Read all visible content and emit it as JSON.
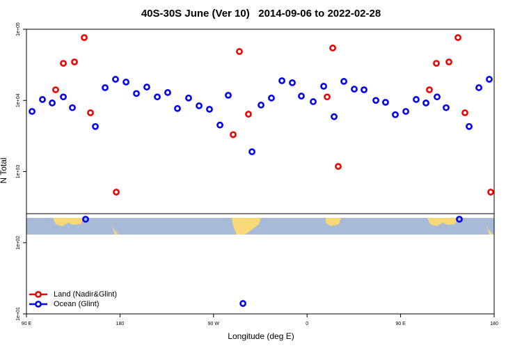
{
  "chart_data": {
    "type": "scatter",
    "title": "40S-30S June (Ver 10)   2014-09-06 to 2022-02-28",
    "xlabel": "Longitude (deg E)",
    "ylabel": "N Total",
    "xlim": [
      90,
      540
    ],
    "xticks": [
      {
        "value": 90,
        "label": "90 E"
      },
      {
        "value": 180,
        "label": "180"
      },
      {
        "value": 270,
        "label": "90 W"
      },
      {
        "value": 360,
        "label": "0"
      },
      {
        "value": 450,
        "label": "90 E"
      },
      {
        "value": 540,
        "label": "180"
      }
    ],
    "ylim": [
      10,
      100000
    ],
    "yticks": [
      {
        "value": 10,
        "label": "1e+01"
      },
      {
        "value": 100,
        "label": "1e+02"
      },
      {
        "value": 1000,
        "label": "1e+03"
      },
      {
        "value": 10000,
        "label": "1e+04"
      },
      {
        "value": 100000,
        "label": "1e+05"
      }
    ],
    "log_y": true,
    "legend": "bottom-left",
    "series": [
      {
        "name": "Land (Nadir&Glint)",
        "color": "#ee0000",
        "x": [
          118.1,
          125.5,
          136.2,
          145.6,
          151.6,
          176.4,
          288.9,
          294.9,
          303.6,
          379.3,
          384.7,
          390.0,
          477.7,
          484.4,
          496.5,
          505.2,
          511.9,
          536.7
        ],
        "values": [
          14100,
          33200,
          34700,
          76300,
          6700,
          514,
          3300,
          48600,
          6400,
          11200,
          54500,
          1180,
          14100,
          33200,
          34700,
          76300,
          6700,
          514
        ]
      },
      {
        "name": "Ocean (Glint)",
        "color": "#0000ee",
        "x": [
          95.4,
          105.4,
          114.8,
          125.5,
          134.2,
          146.9,
          156.3,
          165.7,
          175.7,
          185.8,
          195.8,
          205.8,
          215.9,
          225.9,
          235.3,
          246.0,
          256.1,
          266.1,
          276.2,
          284.2,
          298.3,
          307.0,
          315.7,
          325.7,
          335.8,
          345.8,
          354.5,
          365.9,
          376.0,
          386.0,
          395.4,
          405.4,
          414.8,
          426.2,
          435.5,
          444.9,
          455.0,
          465.0,
          474.4,
          485.1,
          493.8,
          506.5,
          515.9,
          525.3,
          535.3
        ],
        "values": [
          7000,
          10300,
          9200,
          11200,
          7900,
          214,
          4300,
          15100,
          19800,
          18100,
          12500,
          15400,
          11200,
          12900,
          7700,
          10800,
          8400,
          7500,
          4500,
          11800,
          14,
          1900,
          8600,
          10800,
          18900,
          17700,
          11500,
          9600,
          15800,
          5900,
          18500,
          14400,
          14100,
          10000,
          9400,
          6300,
          7000,
          10300,
          9200,
          11200,
          7900,
          214,
          4300,
          15100,
          19800
        ]
      }
    ]
  }
}
